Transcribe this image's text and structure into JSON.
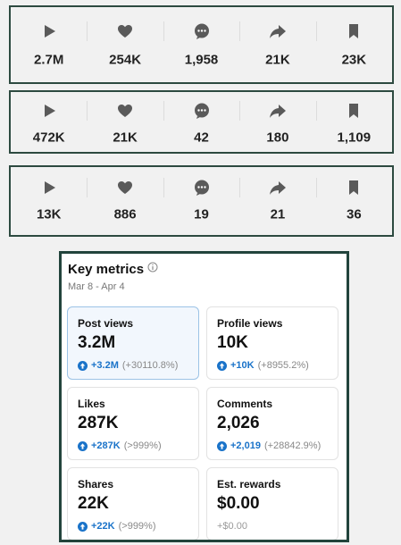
{
  "stat_rows": [
    [
      "2.7M",
      "254K",
      "1,958",
      "21K",
      "23K"
    ],
    [
      "472K",
      "21K",
      "42",
      "180",
      "1,109"
    ],
    [
      "13K",
      "886",
      "19",
      "21",
      "36"
    ]
  ],
  "key_metrics": {
    "title": "Key metrics",
    "date_range": "Mar 8 - Apr 4",
    "cards": [
      {
        "label": "Post views",
        "value": "3.2M",
        "change": "+3.2M",
        "change_pct": "(+30110.8%)"
      },
      {
        "label": "Profile views",
        "value": "10K",
        "change": "+10K",
        "change_pct": "(+8955.2%)"
      },
      {
        "label": "Likes",
        "value": "287K",
        "change": "+287K",
        "change_pct": "(>999%)"
      },
      {
        "label": "Comments",
        "value": "2,026",
        "change": "+2,019",
        "change_pct": "(+28842.9%)"
      },
      {
        "label": "Shares",
        "value": "22K",
        "change": "+22K",
        "change_pct": "(>999%)"
      },
      {
        "label": "Est. rewards",
        "value": "$0.00",
        "change": "+$0.00"
      }
    ]
  }
}
